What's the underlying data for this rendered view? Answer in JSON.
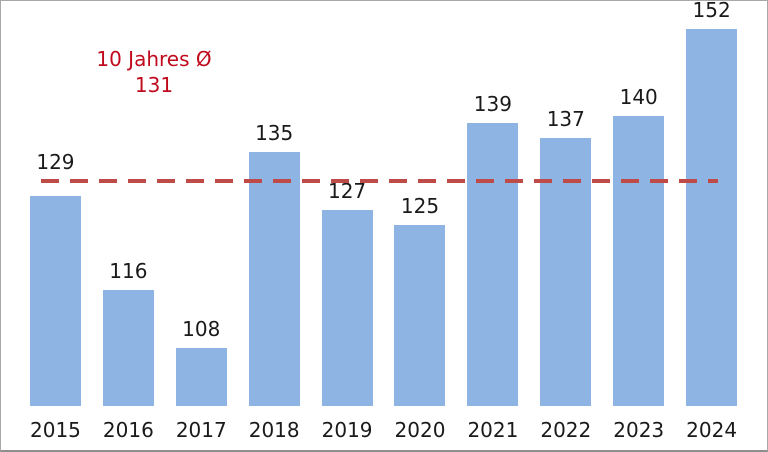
{
  "chart_data": {
    "type": "bar",
    "categories": [
      "2015",
      "2016",
      "2017",
      "2018",
      "2019",
      "2020",
      "2021",
      "2022",
      "2023",
      "2024"
    ],
    "values": [
      129,
      116,
      108,
      135,
      127,
      125,
      139,
      137,
      140,
      152
    ],
    "title": "",
    "xlabel": "",
    "ylabel": "",
    "ylim": [
      100,
      155
    ],
    "grid": false,
    "legend": "none",
    "average": 131,
    "annotation": {
      "label": "10 Jahres Ø",
      "value": "131"
    },
    "colors": {
      "bar": "#8DB4E2",
      "average_line": "#BE4B48",
      "annotation_text": "#C00B1E",
      "label_text": "#1A1A1A"
    }
  }
}
